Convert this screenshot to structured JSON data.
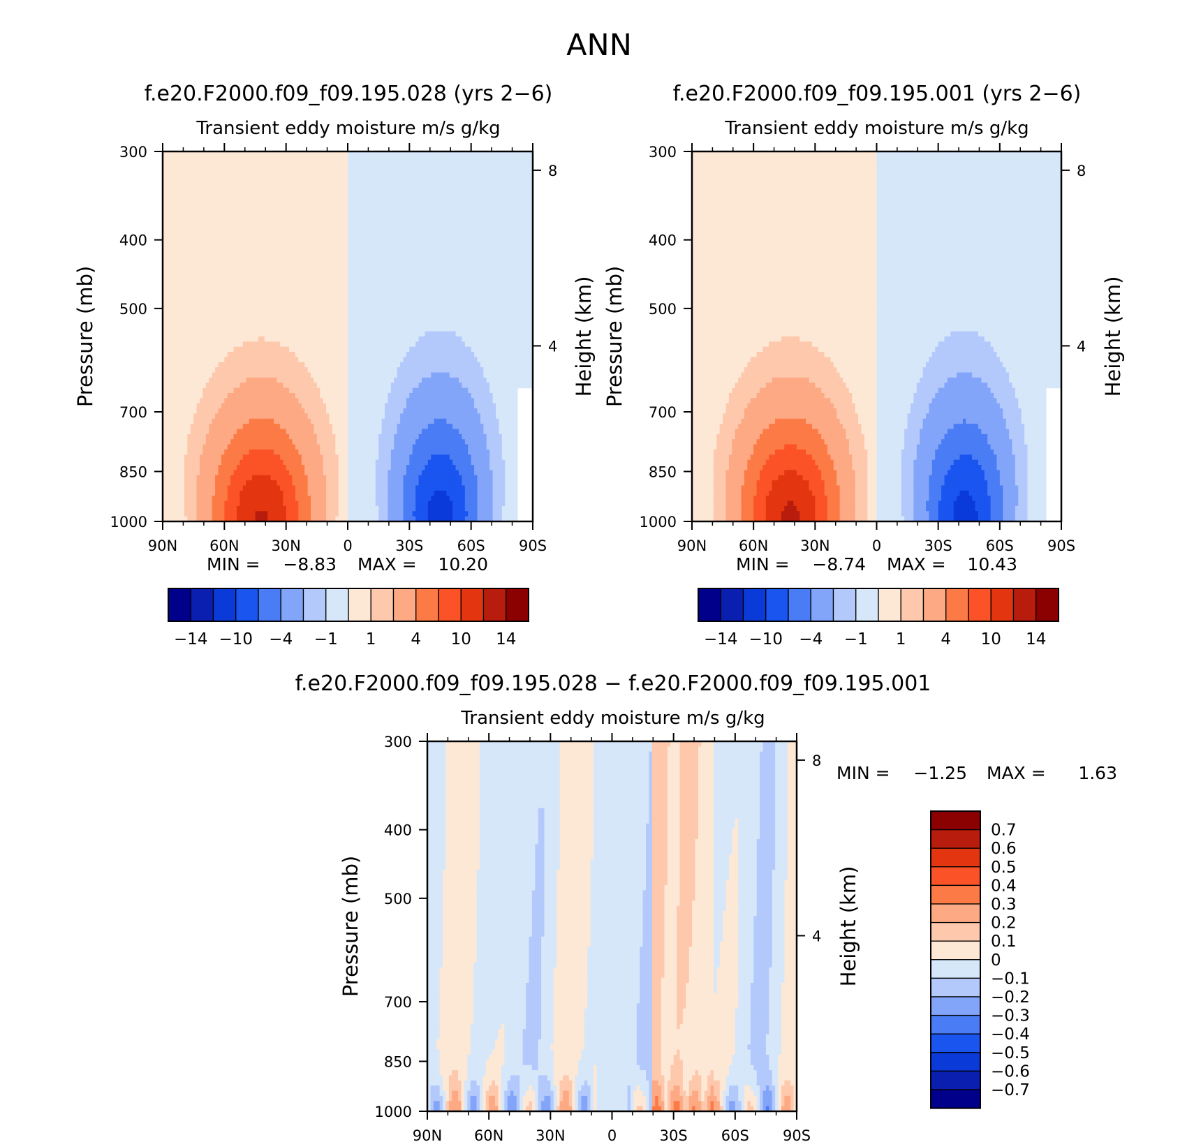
{
  "figure": {
    "title": "ANN",
    "colors": {
      "base_cmap": [
        "#00008b",
        "#0a1fb0",
        "#0a3bd9",
        "#1a55f0",
        "#4a7cf5",
        "#82a5fa",
        "#b3c9fc",
        "#d6e7fa",
        "#fde8d6",
        "#fdc8ac",
        "#fca984",
        "#fc7a45",
        "#fb5227",
        "#e33610",
        "#b81c0d",
        "#8b0000"
      ],
      "diff_cmap": [
        "#8b0000",
        "#b81c0d",
        "#e33610",
        "#fb5227",
        "#fc7a45",
        "#fca984",
        "#fdc8ac",
        "#fde8d6",
        "#d6e7fa",
        "#b3c9fc",
        "#82a5fa",
        "#4a7cf5",
        "#1a55f0",
        "#0a3bd9",
        "#0a1fb0",
        "#00008b"
      ]
    }
  },
  "chart_data": [
    {
      "type": "heatmap",
      "panel": "top-left",
      "title": "f.e20.F2000.f09_f09.195.028 (yrs 2−6)",
      "subtitle": "Transient eddy moisture m/s g/kg",
      "ylabel": "Pressure (mb)",
      "y2label": "Height (km)",
      "x_ticks": [
        "90N",
        "60N",
        "30N",
        "0",
        "30S",
        "60S",
        "90S"
      ],
      "y_ticks": [
        "300",
        "400",
        "500",
        "700",
        "850",
        "1000"
      ],
      "y2_ticks": [
        "8",
        "4"
      ],
      "stats": {
        "min_label": "MIN =",
        "min": "−8.83",
        "max_label": "MAX =",
        "max": "10.20"
      },
      "colorbar_labels": [
        "−14",
        "−10",
        "−4",
        "−1",
        "1",
        "4",
        "10",
        "14"
      ],
      "peaks": {
        "north_lat": 42,
        "north_value": 10.2,
        "south_lat": -45,
        "south_value": -8.83
      }
    },
    {
      "type": "heatmap",
      "panel": "top-right",
      "title": "f.e20.F2000.f09_f09.195.001 (yrs 2−6)",
      "subtitle": "Transient eddy moisture m/s g/kg",
      "ylabel": "Pressure (mb)",
      "y2label": "Height (km)",
      "x_ticks": [
        "90N",
        "60N",
        "30N",
        "0",
        "30S",
        "60S",
        "90S"
      ],
      "y_ticks": [
        "300",
        "400",
        "500",
        "700",
        "850",
        "1000"
      ],
      "y2_ticks": [
        "8",
        "4"
      ],
      "stats": {
        "min_label": "MIN =",
        "min": "−8.74",
        "max_label": "MAX =",
        "max": "10.43"
      },
      "colorbar_labels": [
        "−14",
        "−10",
        "−4",
        "−1",
        "1",
        "4",
        "10",
        "14"
      ],
      "peaks": {
        "north_lat": 42,
        "north_value": 10.43,
        "south_lat": -43,
        "south_value": -8.74
      }
    },
    {
      "type": "heatmap",
      "panel": "bottom",
      "title": "f.e20.F2000.f09_f09.195.028 − f.e20.F2000.f09_f09.195.001",
      "subtitle": "Transient eddy moisture m/s g/kg",
      "ylabel": "Pressure (mb)",
      "y2label": "Height (km)",
      "x_ticks": [
        "90N",
        "60N",
        "30N",
        "0",
        "30S",
        "60S",
        "90S"
      ],
      "y_ticks": [
        "300",
        "400",
        "500",
        "700",
        "850",
        "1000"
      ],
      "y2_ticks": [
        "8",
        "4"
      ],
      "stats": {
        "min_label": "MIN =",
        "min": "−1.25",
        "max_label": "MAX =",
        "max": "1.63"
      },
      "colorbar_labels": [
        "0.7",
        "0.6",
        "0.5",
        "0.4",
        "0.3",
        "0.2",
        "0.1",
        "0",
        "−0.1",
        "−0.2",
        "−0.3",
        "−0.4",
        "−0.5",
        "−0.6",
        "−0.7"
      ]
    }
  ]
}
